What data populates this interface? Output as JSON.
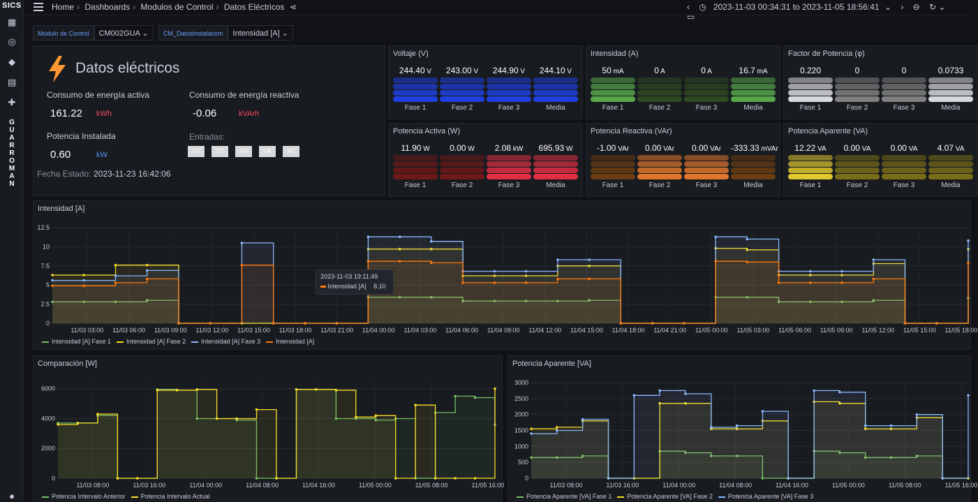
{
  "app": {
    "logo": "SICS",
    "vertical_label": [
      "G",
      "U",
      "A",
      "R",
      "R",
      "O",
      "M",
      "A",
      "N"
    ]
  },
  "breadcrumb": [
    "Home",
    "Dashboards",
    "Modulos de Control",
    "Datos Eléctricos"
  ],
  "time_range": "2023-11-03 00:34:31 to 2023-11-05 18:56:41",
  "variables": [
    {
      "label": "Módulo de Control",
      "value": "CM002GUA"
    },
    {
      "label": "CM_DatosInstalacion",
      "value": "Intensidad [A]"
    }
  ],
  "datos": {
    "title": "Datos eléctricos",
    "consumo_activa_label": "Consumo de energía activa",
    "consumo_activa_value": "161.22",
    "consumo_activa_unit": "kWh",
    "consumo_reactiva_label": "Consumo de energía reactiva",
    "consumo_reactiva_value": "-0.06",
    "consumo_reactiva_unit": "kVArh",
    "potencia_label": "Potencia Instalada",
    "potencia_value": "0.60",
    "potencia_unit": "kW",
    "entradas_label": "Entradas:",
    "entradas": [
      "D1",
      "D2",
      "D3",
      "D4",
      "AC"
    ],
    "fecha_label": "Fecha Estado:",
    "fecha_value": "2023-11-23 16:42:06"
  },
  "stat_panels": [
    {
      "title": "Voltaje (V)",
      "color": "#1f3fe0",
      "colors_by_col": [
        "#1f3fe0",
        "#1f3fe0",
        "#1f3fe0",
        "#1f3fe0"
      ],
      "labels": [
        "Fase 1",
        "Fase 2",
        "Fase 3",
        "Media"
      ],
      "values": [
        "244.40",
        "243.00",
        "244.90",
        "244.10"
      ],
      "units": [
        "V",
        "V",
        "V",
        "V"
      ]
    },
    {
      "title": "Intensidad (A)",
      "colors_by_col": [
        "#56a64b",
        "#2e4a21",
        "#2e4a21",
        "#56a64b"
      ],
      "labels": [
        "Fase 1",
        "Fase 2",
        "Fase 3",
        "Media"
      ],
      "values": [
        "50",
        "0",
        "0",
        "16.7"
      ],
      "units": [
        "mA",
        "A",
        "A",
        "mA"
      ]
    },
    {
      "title": "Factor de Potencia (φ)",
      "colors_by_col": [
        "#d8d9da",
        "#808080",
        "#808080",
        "#d8d9da"
      ],
      "labels": [
        "Fase 1",
        "Fase 2",
        "Fase 3",
        "Media"
      ],
      "values": [
        "0.220",
        "0",
        "0",
        "0.0733"
      ],
      "units": [
        "",
        "",
        "",
        ""
      ]
    },
    {
      "title": "Potencia Activa (W)",
      "colors_by_col": [
        "#6e1818",
        "#6e1818",
        "#e02f44",
        "#e02f44"
      ],
      "labels": [
        "Fase 1",
        "Fase 2",
        "Fase 3",
        "Media"
      ],
      "values": [
        "11.90",
        "0.00",
        "2.08",
        "695.93"
      ],
      "units": [
        "W",
        "W",
        "kW",
        "W"
      ]
    },
    {
      "title": "Potencia Reactiva (VAr)",
      "colors_by_col": [
        "#6b3d12",
        "#e0752d",
        "#e0752d",
        "#6b3d12"
      ],
      "labels": [
        "Fase 1",
        "Fase 2",
        "Fase 3",
        "Media"
      ],
      "values": [
        "-1.00",
        "0.00",
        "0.00",
        "-333.33"
      ],
      "units": [
        "VAr",
        "VAr",
        "VAr",
        "mVAr"
      ]
    },
    {
      "title": "Potencia Aparente (VA)",
      "colors_by_col": [
        "#e0c82d",
        "#7a6d1a",
        "#7a6d1a",
        "#7a6d1a"
      ],
      "labels": [
        "Fase 1",
        "Fase 2",
        "Fase 3",
        "Media"
      ],
      "values": [
        "12.22",
        "0.00",
        "0.00",
        "4.07"
      ],
      "units": [
        "VA",
        "VA",
        "VA",
        "VA"
      ]
    }
  ],
  "chart_data": [
    {
      "type": "line",
      "title": "Intensidad [A]",
      "ylim": [
        0,
        12.5
      ],
      "yticks": [
        "0",
        "2.5",
        "5",
        "7.5",
        "10",
        "12.5"
      ],
      "xticks": [
        "11/03 03:00",
        "11/03 06:00",
        "11/03 09:00",
        "11/03 12:00",
        "11/03 15:00",
        "11/03 18:00",
        "11/03 21:00",
        "11/04 00:00",
        "11/04 03:00",
        "11/04 06:00",
        "11/04 09:00",
        "11/04 12:00",
        "11/04 15:00",
        "11/04 18:00",
        "11/04 21:00",
        "11/05 00:00",
        "11/05 03:00",
        "11/05 06:00",
        "11/05 09:00",
        "11/05 12:00",
        "11/05 15:00",
        "11/05 18:00"
      ],
      "x_hours": [
        0.5,
        2,
        3,
        5,
        6,
        11.5,
        11.8,
        12,
        14,
        17.5,
        18,
        20,
        21,
        24,
        27,
        28,
        30,
        31,
        33,
        45,
        45.5,
        49,
        51,
        53,
        56,
        58,
        59,
        62,
        66,
        68
      ],
      "series": [
        {
          "name": "Intensidad [A] Fase 1",
          "color": "#73bf69",
          "values": [
            2.8,
            2.8,
            2.8,
            3.0,
            0,
            0,
            0,
            0,
            0,
            0,
            3.4,
            3.4,
            3.4,
            2.9,
            2.9,
            2.9,
            2.9,
            3.0,
            0,
            0,
            0,
            3.4,
            3.4,
            2.8,
            2.8,
            2.8,
            3.0,
            0,
            0,
            3.3
          ]
        },
        {
          "name": "Intensidad [A] Fase 2",
          "color": "#fade2a",
          "values": [
            6.3,
            6.3,
            7.6,
            7.6,
            0,
            0,
            0,
            0,
            0,
            0,
            9.7,
            9.7,
            9.7,
            6.2,
            6.2,
            6.2,
            7.5,
            7.5,
            0,
            0,
            0,
            9.8,
            9.6,
            6.3,
            6.3,
            6.3,
            7.8,
            0,
            0,
            9.7
          ]
        },
        {
          "name": "Intensidad [A] Fase 3",
          "color": "#8ab8ff",
          "values": [
            5.6,
            5.6,
            6.2,
            6.9,
            0,
            0,
            10.5,
            0,
            0,
            0,
            11.3,
            11.3,
            10.7,
            6.8,
            6.8,
            6.8,
            8.3,
            8.3,
            0,
            0,
            0,
            11.3,
            11.0,
            6.8,
            6.8,
            6.8,
            8.3,
            0,
            0,
            10.8
          ]
        },
        {
          "name": "Intensidad [A]",
          "color": "#ff780a",
          "values": [
            4.9,
            4.9,
            5.3,
            5.8,
            0,
            0,
            7.6,
            0,
            0,
            0,
            8.1,
            8.1,
            7.9,
            5.3,
            5.3,
            5.3,
            5.8,
            5.8,
            0,
            0,
            0,
            8.1,
            8.0,
            5.3,
            5.3,
            5.3,
            5.8,
            0,
            0,
            7.9
          ]
        }
      ]
    },
    {
      "type": "line",
      "title": "Comparación [W]",
      "ylim": [
        0,
        6500
      ],
      "yticks": [
        "0",
        "2000",
        "4000",
        "6000"
      ],
      "xticks": [
        "11/03 08:00",
        "11/03 16:00",
        "11/04 00:00",
        "11/04 08:00",
        "11/04 16:00",
        "11/05 00:00",
        "11/05 08:00",
        "11/05 16:00"
      ],
      "series": [
        {
          "name": "Potencia Intervalo Anterior",
          "color": "#73bf69",
          "values": [
            3700,
            3700,
            4200,
            0,
            0,
            5950,
            5900,
            4000,
            4000,
            3900,
            0,
            0,
            5950,
            5950,
            4000,
            4000,
            3900,
            4000,
            0,
            4400,
            5500,
            5400,
            3600
          ]
        },
        {
          "name": "Potencia Intervalo Actual",
          "color": "#fade2a",
          "values": [
            3600,
            3700,
            4300,
            0,
            0,
            5900,
            5900,
            5950,
            4000,
            4000,
            4600,
            0,
            5950,
            5950,
            5900,
            4100,
            4200,
            0,
            4900,
            0,
            0,
            0,
            6000
          ]
        }
      ]
    },
    {
      "type": "line",
      "title": "Potencia Aparente [VA]",
      "ylim": [
        0,
        3000
      ],
      "yticks": [
        "0",
        "500",
        "1000",
        "1500",
        "2000",
        "2500",
        "3000"
      ],
      "xticks": [
        "11/03 08:00",
        "11/03 16:00",
        "11/04 00:00",
        "11/04 08:00",
        "11/04 16:00",
        "11/05 00:00",
        "11/05 08:00",
        "11/05 16:00"
      ],
      "series": [
        {
          "name": "Potencia Aparente [VA] Fase 1",
          "color": "#73bf69",
          "values": [
            650,
            650,
            700,
            0,
            0,
            850,
            800,
            700,
            700,
            0,
            0,
            850,
            800,
            650,
            650,
            700,
            0,
            0
          ]
        },
        {
          "name": "Potencia Aparente [VA] Fase 2",
          "color": "#fade2a",
          "values": [
            1550,
            1600,
            1800,
            0,
            0,
            2350,
            2350,
            1550,
            1550,
            1800,
            0,
            2400,
            2350,
            1550,
            1550,
            1900,
            0,
            0
          ]
        },
        {
          "name": "Potencia Aparente [VA] Fase 3",
          "color": "#8ab8ff",
          "values": [
            1400,
            1500,
            1850,
            0,
            2600,
            2750,
            2650,
            1600,
            1650,
            2100,
            0,
            2750,
            2700,
            1650,
            1650,
            2000,
            0,
            2600
          ]
        }
      ]
    }
  ],
  "tooltip": {
    "time": "2023-11-03 19:11:49",
    "label": "Intensidad [A]",
    "value": "8.10"
  }
}
